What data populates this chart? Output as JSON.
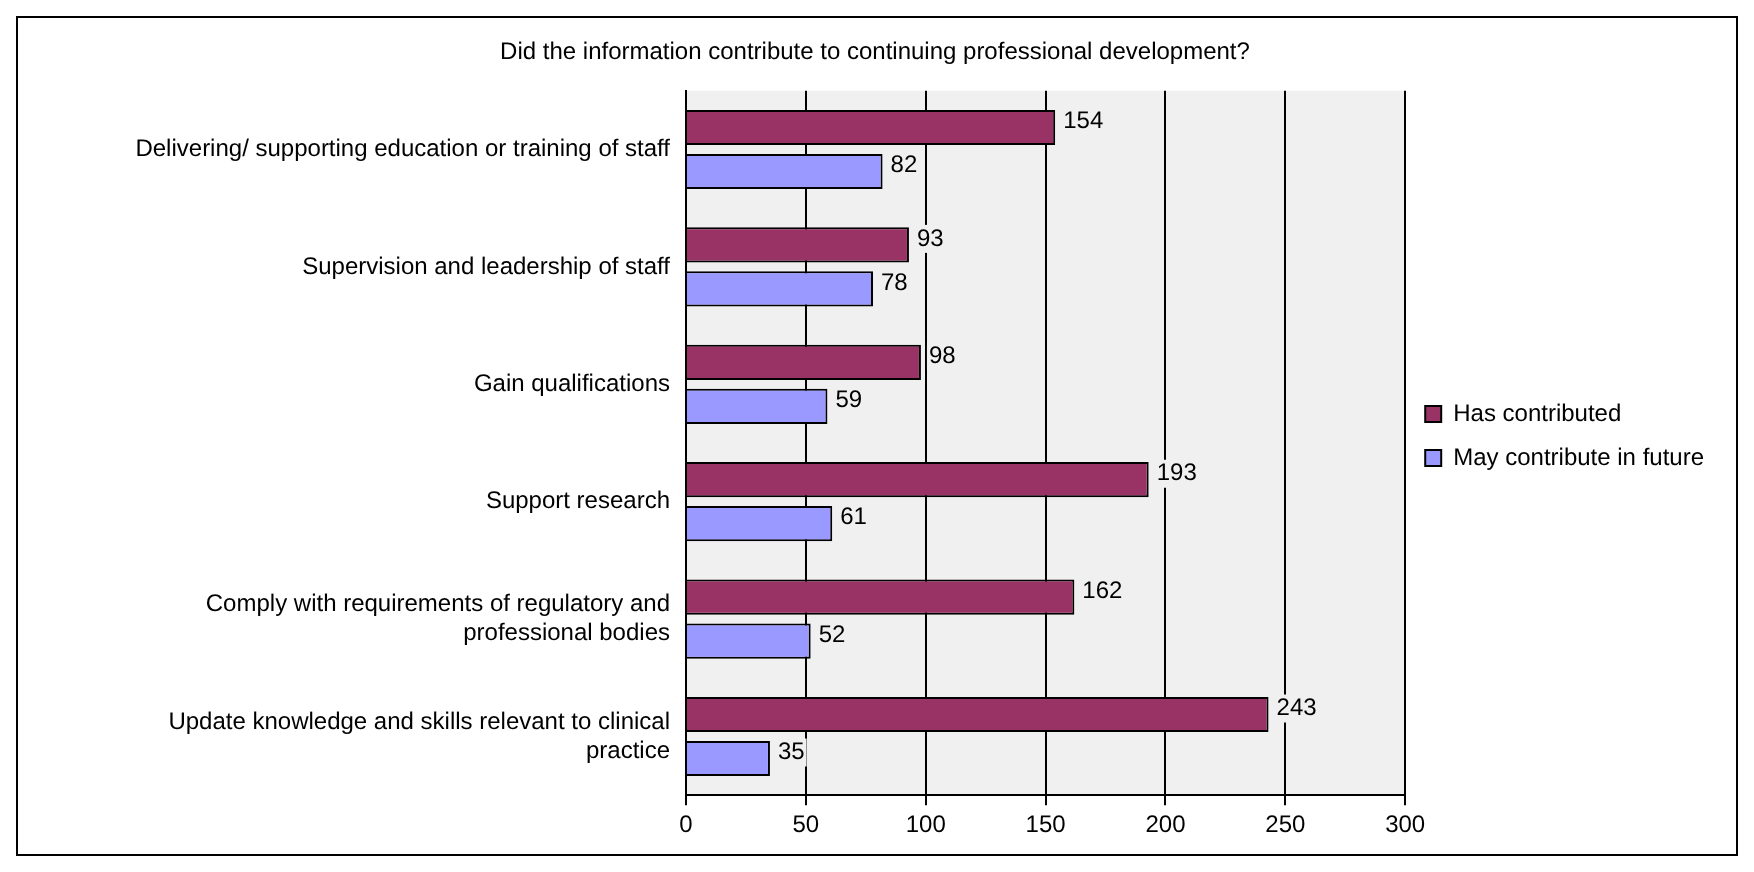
{
  "chart_data": {
    "type": "bar",
    "orientation": "horizontal",
    "title": "Did the information contribute to continuing professional development?",
    "categories": [
      "Delivering/ supporting education or training of staff",
      "Supervision and leadership of staff",
      "Gain qualifications",
      "Support research",
      "Comply with requirements of regulatory and professional bodies",
      "Update knowledge and skills relevant to clinical practice"
    ],
    "series": [
      {
        "name": "Has contributed",
        "color": "#993366",
        "values": [
          154,
          93,
          98,
          193,
          162,
          243
        ]
      },
      {
        "name": "May contribute in future",
        "color": "#9999ff",
        "values": [
          82,
          78,
          59,
          61,
          52,
          35
        ]
      }
    ],
    "xlim": [
      0,
      300
    ],
    "xticks": [
      0,
      50,
      100,
      150,
      200,
      250,
      300
    ],
    "grid": "x",
    "legend": "right",
    "data_labels": true
  }
}
